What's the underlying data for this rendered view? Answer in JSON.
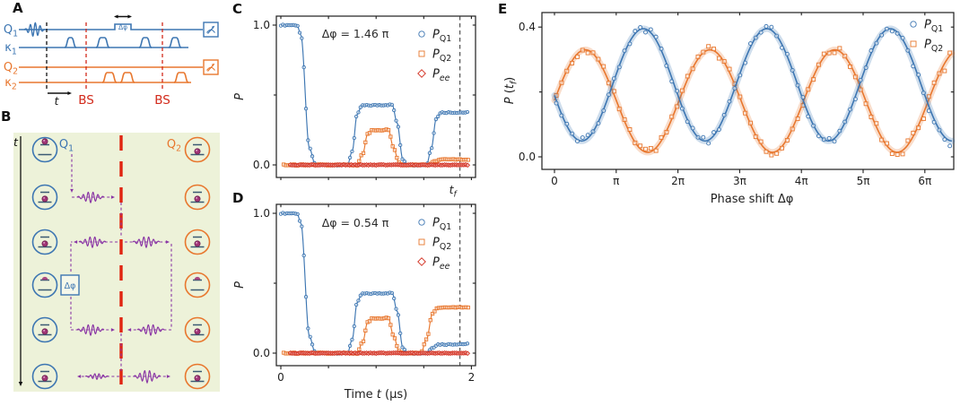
{
  "figure": {
    "background": "#ffffff"
  },
  "colors": {
    "blue": "#3d76b2",
    "orange": "#e8772e",
    "red": "#d22a1b",
    "purple": "#8a36a5",
    "green_bg": "#edf2d9",
    "ink": "#1d1d1d",
    "level_line": "#3b5a72",
    "ball": "#a23577"
  },
  "panel_a": {
    "letter": "A",
    "rows": [
      {
        "label": "Q",
        "sub": "1",
        "color": "blue"
      },
      {
        "label": "κ",
        "sub": "1",
        "color": "blue"
      },
      {
        "label": "Q",
        "sub": "2",
        "color": "orange"
      },
      {
        "label": "κ",
        "sub": "2",
        "color": "orange"
      }
    ],
    "bs_label": "BS",
    "time_label": "t",
    "phase_label": "Δφ"
  },
  "panel_b": {
    "letter": "B",
    "time_label": "t",
    "q1": {
      "label": "Q",
      "sub": "1"
    },
    "q2": {
      "label": "Q",
      "sub": "2"
    },
    "phase_label": "Δφ",
    "rows": [
      {
        "left": "up",
        "right": "low"
      },
      {
        "left": "low",
        "right": "low"
      },
      {
        "left": "low",
        "right": "low"
      },
      {
        "left": "half",
        "right": "half"
      },
      {
        "left": "low",
        "right": "low"
      },
      {
        "left": "low",
        "right": "low"
      }
    ]
  },
  "chart_data": [
    {
      "id": "C",
      "type": "line",
      "letter": "C",
      "annotation": "Δφ = 1.46 π",
      "ylabel": [
        {
          "t": "P",
          "i": 1
        }
      ],
      "xlabel": null,
      "xticks": [
        0,
        0.5,
        1,
        1.5,
        2
      ],
      "xtick_labels": [
        "",
        "",
        "",
        "",
        ""
      ],
      "yticks": [
        0,
        0.5,
        1
      ],
      "ytick_labels": [
        "0.0",
        "",
        "1.0"
      ],
      "xlim": [
        0,
        2
      ],
      "ylim": [
        0,
        1
      ],
      "tf": {
        "x": 1.88,
        "show_label": true,
        "label": [
          {
            "t": "t",
            "i": 1
          },
          {
            "t": "f",
            "i": 1,
            "sub": 1
          }
        ]
      },
      "legend": [
        {
          "marker": "circle",
          "color": "blue",
          "label": [
            {
              "t": "P",
              "i": 1
            },
            {
              "t": "Q1",
              "sub": 1
            }
          ]
        },
        {
          "marker": "square",
          "color": "orange",
          "label": [
            {
              "t": "P",
              "i": 1
            },
            {
              "t": "Q2",
              "sub": 1
            }
          ]
        },
        {
          "marker": "diamond",
          "color": "red",
          "label": [
            {
              "t": "P",
              "i": 1
            },
            {
              "t": "ee",
              "i": 1,
              "sub": 1
            }
          ]
        }
      ],
      "series": [
        {
          "name": "P_Q1",
          "marker": "circle",
          "color": "blue",
          "style": "piecewise",
          "marker_step": 0.022,
          "scatter": 0.004,
          "points": [
            [
              0,
              1
            ],
            [
              0.17,
              1
            ],
            [
              0.21,
              0.93
            ],
            [
              0.3,
              0.12
            ],
            [
              0.36,
              0.005
            ],
            [
              0.4,
              0
            ],
            [
              0.7,
              0
            ],
            [
              0.75,
              0.1
            ],
            [
              0.8,
              0.36
            ],
            [
              0.85,
              0.425
            ],
            [
              1.17,
              0.43
            ],
            [
              1.22,
              0.3
            ],
            [
              1.28,
              0.04
            ],
            [
              1.33,
              0
            ],
            [
              1.53,
              0
            ],
            [
              1.58,
              0.12
            ],
            [
              1.63,
              0.33
            ],
            [
              1.68,
              0.375
            ],
            [
              1.97,
              0.375
            ]
          ]
        },
        {
          "name": "P_Q2",
          "marker": "square",
          "color": "orange",
          "style": "piecewise",
          "marker_step": 0.022,
          "scatter": 0.004,
          "points": [
            [
              0.03,
              0
            ],
            [
              0.8,
              0
            ],
            [
              0.86,
              0.08
            ],
            [
              0.91,
              0.22
            ],
            [
              0.96,
              0.25
            ],
            [
              1.13,
              0.25
            ],
            [
              1.18,
              0.13
            ],
            [
              1.24,
              0.015
            ],
            [
              1.28,
              0
            ],
            [
              1.55,
              0
            ],
            [
              1.62,
              0.03
            ],
            [
              1.68,
              0.04
            ],
            [
              1.97,
              0.04
            ]
          ]
        },
        {
          "name": "P_ee",
          "marker": "diamond",
          "color": "red",
          "style": "piecewise",
          "marker_step": 0.02,
          "scatter": 0.002,
          "line_width": 2.2,
          "marker_size": 1.6,
          "points": [
            [
              0.1,
              0
            ],
            [
              1.97,
              0
            ]
          ]
        }
      ]
    },
    {
      "id": "D",
      "type": "line",
      "letter": "D",
      "annotation": "Δφ = 0.54 π",
      "ylabel": [
        {
          "t": "P",
          "i": 1
        }
      ],
      "xlabel": [
        {
          "t": "Time "
        },
        {
          "t": "t",
          "i": 1
        },
        {
          "t": " (μs)"
        }
      ],
      "xticks": [
        0,
        0.5,
        1,
        1.5,
        2
      ],
      "xtick_labels": [
        "0",
        "",
        "",
        "",
        "2"
      ],
      "yticks": [
        0,
        0.5,
        1
      ],
      "ytick_labels": [
        "0.0",
        "",
        "1.0"
      ],
      "xlim": [
        0,
        2
      ],
      "ylim": [
        0,
        1
      ],
      "tf": {
        "x": 1.88,
        "show_label": false,
        "label": [
          {
            "t": "t",
            "i": 1
          },
          {
            "t": "f",
            "i": 1,
            "sub": 1
          }
        ]
      },
      "legend": [
        {
          "marker": "circle",
          "color": "blue",
          "label": [
            {
              "t": "P",
              "i": 1
            },
            {
              "t": "Q1",
              "sub": 1
            }
          ]
        },
        {
          "marker": "square",
          "color": "orange",
          "label": [
            {
              "t": "P",
              "i": 1
            },
            {
              "t": "Q2",
              "sub": 1
            }
          ]
        },
        {
          "marker": "diamond",
          "color": "red",
          "label": [
            {
              "t": "P",
              "i": 1
            },
            {
              "t": "ee",
              "i": 1,
              "sub": 1
            }
          ]
        }
      ],
      "series": [
        {
          "name": "P_Q1",
          "marker": "circle",
          "color": "blue",
          "style": "piecewise",
          "marker_step": 0.022,
          "scatter": 0.004,
          "points": [
            [
              0,
              1
            ],
            [
              0.17,
              1
            ],
            [
              0.21,
              0.93
            ],
            [
              0.3,
              0.12
            ],
            [
              0.36,
              0.005
            ],
            [
              0.4,
              0
            ],
            [
              0.7,
              0
            ],
            [
              0.75,
              0.1
            ],
            [
              0.8,
              0.36
            ],
            [
              0.85,
              0.425
            ],
            [
              1.17,
              0.43
            ],
            [
              1.22,
              0.3
            ],
            [
              1.28,
              0.04
            ],
            [
              1.33,
              0
            ],
            [
              1.53,
              0
            ],
            [
              1.59,
              0.04
            ],
            [
              1.65,
              0.062
            ],
            [
              1.97,
              0.065
            ]
          ]
        },
        {
          "name": "P_Q2",
          "marker": "square",
          "color": "orange",
          "style": "piecewise",
          "marker_step": 0.022,
          "scatter": 0.004,
          "points": [
            [
              0.03,
              0
            ],
            [
              0.8,
              0
            ],
            [
              0.86,
              0.08
            ],
            [
              0.91,
              0.22
            ],
            [
              0.96,
              0.25
            ],
            [
              1.13,
              0.25
            ],
            [
              1.18,
              0.13
            ],
            [
              1.24,
              0.015
            ],
            [
              1.28,
              0
            ],
            [
              1.47,
              0
            ],
            [
              1.53,
              0.1
            ],
            [
              1.59,
              0.28
            ],
            [
              1.64,
              0.325
            ],
            [
              1.97,
              0.33
            ]
          ]
        },
        {
          "name": "P_ee",
          "marker": "diamond",
          "color": "red",
          "style": "piecewise",
          "marker_step": 0.02,
          "scatter": 0.002,
          "line_width": 2.2,
          "marker_size": 1.6,
          "points": [
            [
              0.1,
              0
            ],
            [
              1.97,
              0
            ]
          ]
        }
      ]
    },
    {
      "id": "E",
      "type": "line",
      "letter": "E",
      "annotation": null,
      "ylabel": [
        {
          "t": "P",
          "i": 1
        },
        {
          "t": " ("
        },
        {
          "t": "t",
          "i": 1
        },
        {
          "t": "f",
          "i": 1,
          "sub": 1
        },
        {
          "t": ")"
        }
      ],
      "xlabel": [
        {
          "t": "Phase shift Δφ"
        }
      ],
      "xticks": [
        0,
        1,
        2,
        3,
        4,
        5,
        6
      ],
      "xtick_labels": [
        "0",
        "π",
        "2π",
        "3π",
        "4π",
        "5π",
        "6π"
      ],
      "yticks": [
        0,
        0.2,
        0.4
      ],
      "ytick_labels": [
        "0.0",
        "",
        "0.4"
      ],
      "x_unit": "pi",
      "xlim_pi": [
        -0.2,
        6.47
      ],
      "ylim": [
        0,
        0.44
      ],
      "legend": [
        {
          "marker": "circle",
          "color": "blue",
          "label": [
            {
              "t": "P",
              "i": 1
            },
            {
              "t": "Q1",
              "sub": 1
            }
          ]
        },
        {
          "marker": "square",
          "color": "orange",
          "label": [
            {
              "t": "P",
              "i": 1
            },
            {
              "t": "Q2",
              "sub": 1
            }
          ]
        }
      ],
      "series": [
        {
          "name": "P_Q2",
          "marker": "square",
          "color": "orange",
          "style": "sinusoid",
          "band": true,
          "model": {
            "center": 0.172,
            "amplitude": 0.158,
            "peak_at_pi": 0.5,
            "period_pi": 2.02
          },
          "x_range_pi": [
            0,
            6.45
          ],
          "marker_step_pi": 0.085,
          "scatter": 0.011,
          "scatter_end": {
            "from_pi": 5.5,
            "factor": 2.8
          }
        },
        {
          "name": "P_Q1",
          "marker": "circle",
          "color": "blue",
          "style": "sinusoid",
          "band": true,
          "model": {
            "center": 0.222,
            "amplitude": 0.173,
            "peak_at_pi": 1.44,
            "period_pi": 2.0
          },
          "x_range_pi": [
            0,
            6.45
          ],
          "marker_step_pi": 0.085,
          "scatter": 0.011,
          "scatter_end": {
            "from_pi": 5.7,
            "factor": 2.0
          }
        }
      ]
    }
  ]
}
